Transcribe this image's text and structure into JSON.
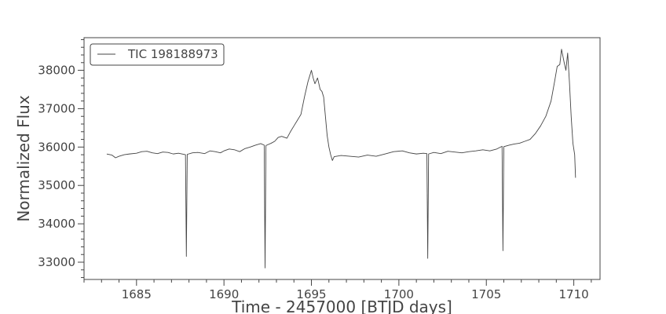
{
  "chart_data": {
    "type": "line",
    "xlabel": "Time - 2457000 [BTJD days]",
    "ylabel": "Normalized Flux",
    "xlim": [
      1682.0,
      1711.5
    ],
    "ylim": [
      32550,
      38850
    ],
    "xticks": [
      1685,
      1690,
      1695,
      1700,
      1705,
      1710
    ],
    "yticks": [
      33000,
      34000,
      35000,
      36000,
      37000,
      38000
    ],
    "x_minor_step": 1,
    "y_minor_step": 200,
    "grid": false,
    "legend": {
      "position": "top-left",
      "entries": [
        "TIC 198188973"
      ]
    },
    "colors": {
      "line": "#444444",
      "axes": "#444444",
      "text": "#444444"
    },
    "series": [
      {
        "name": "TIC 198188973",
        "points": [
          [
            1683.3,
            35820
          ],
          [
            1683.6,
            35790
          ],
          [
            1683.8,
            35720
          ],
          [
            1684.0,
            35760
          ],
          [
            1684.3,
            35800
          ],
          [
            1684.6,
            35820
          ],
          [
            1685.0,
            35840
          ],
          [
            1685.3,
            35880
          ],
          [
            1685.6,
            35890
          ],
          [
            1685.9,
            35850
          ],
          [
            1686.2,
            35830
          ],
          [
            1686.5,
            35870
          ],
          [
            1686.8,
            35860
          ],
          [
            1687.1,
            35820
          ],
          [
            1687.4,
            35840
          ],
          [
            1687.8,
            35800
          ],
          [
            1687.85,
            33150
          ],
          [
            1687.9,
            35810
          ],
          [
            1688.2,
            35850
          ],
          [
            1688.5,
            35860
          ],
          [
            1688.9,
            35830
          ],
          [
            1689.2,
            35900
          ],
          [
            1689.5,
            35880
          ],
          [
            1689.8,
            35850
          ],
          [
            1690.0,
            35900
          ],
          [
            1690.3,
            35950
          ],
          [
            1690.6,
            35930
          ],
          [
            1690.9,
            35880
          ],
          [
            1691.2,
            35960
          ],
          [
            1691.5,
            36000
          ],
          [
            1691.8,
            36050
          ],
          [
            1692.1,
            36090
          ],
          [
            1692.3,
            36050
          ],
          [
            1692.35,
            32850
          ],
          [
            1692.4,
            36040
          ],
          [
            1692.7,
            36100
          ],
          [
            1692.9,
            36150
          ],
          [
            1693.1,
            36250
          ],
          [
            1693.3,
            36280
          ],
          [
            1693.6,
            36230
          ],
          [
            1693.8,
            36400
          ],
          [
            1694.0,
            36550
          ],
          [
            1694.2,
            36700
          ],
          [
            1694.4,
            36850
          ],
          [
            1694.6,
            37300
          ],
          [
            1694.8,
            37700
          ],
          [
            1695.0,
            38000
          ],
          [
            1695.1,
            37800
          ],
          [
            1695.2,
            37650
          ],
          [
            1695.35,
            37800
          ],
          [
            1695.5,
            37500
          ],
          [
            1695.6,
            37450
          ],
          [
            1695.7,
            37300
          ],
          [
            1695.8,
            36800
          ],
          [
            1695.9,
            36300
          ],
          [
            1696.0,
            36000
          ],
          [
            1696.1,
            35800
          ],
          [
            1696.2,
            35650
          ],
          [
            1696.3,
            35750
          ],
          [
            1696.7,
            35780
          ],
          [
            1697.2,
            35760
          ],
          [
            1697.7,
            35740
          ],
          [
            1698.2,
            35790
          ],
          [
            1698.7,
            35760
          ],
          [
            1699.2,
            35820
          ],
          [
            1699.7,
            35880
          ],
          [
            1700.2,
            35900
          ],
          [
            1700.6,
            35850
          ],
          [
            1701.0,
            35820
          ],
          [
            1701.4,
            35840
          ],
          [
            1701.6,
            35830
          ],
          [
            1701.65,
            33100
          ],
          [
            1701.7,
            35820
          ],
          [
            1702.0,
            35860
          ],
          [
            1702.4,
            35830
          ],
          [
            1702.8,
            35890
          ],
          [
            1703.2,
            35870
          ],
          [
            1703.6,
            35850
          ],
          [
            1704.0,
            35880
          ],
          [
            1704.4,
            35900
          ],
          [
            1704.8,
            35930
          ],
          [
            1705.2,
            35900
          ],
          [
            1705.6,
            35950
          ],
          [
            1705.9,
            36020
          ],
          [
            1705.95,
            33300
          ],
          [
            1706.0,
            36010
          ],
          [
            1706.3,
            36050
          ],
          [
            1706.6,
            36080
          ],
          [
            1706.9,
            36100
          ],
          [
            1707.2,
            36150
          ],
          [
            1707.5,
            36200
          ],
          [
            1707.8,
            36350
          ],
          [
            1708.1,
            36550
          ],
          [
            1708.4,
            36800
          ],
          [
            1708.7,
            37200
          ],
          [
            1708.9,
            37700
          ],
          [
            1709.05,
            38100
          ],
          [
            1709.2,
            38150
          ],
          [
            1709.3,
            38550
          ],
          [
            1709.45,
            38200
          ],
          [
            1709.55,
            38000
          ],
          [
            1709.65,
            38450
          ],
          [
            1709.75,
            37700
          ],
          [
            1709.85,
            36800
          ],
          [
            1709.95,
            36100
          ],
          [
            1710.05,
            35800
          ],
          [
            1710.1,
            35200
          ]
        ]
      }
    ]
  }
}
